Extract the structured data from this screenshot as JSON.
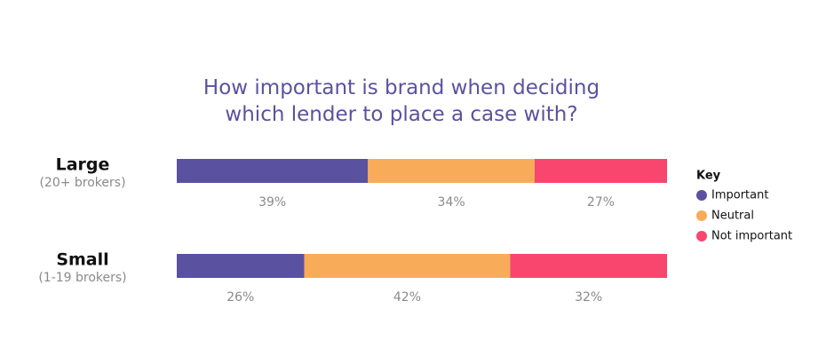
{
  "chart_data": {
    "type": "stacked-bar",
    "orientation": "horizontal",
    "title": "How important is brand when deciding which lender to place a case with?",
    "categories": [
      "Large",
      "Small"
    ],
    "category_subtitles": [
      "(20+ brokers)",
      "(1-19 brokers)"
    ],
    "legend_title": "Key",
    "legend": "right",
    "series": [
      {
        "name": "Important",
        "color": "#5a52a0",
        "values": [
          39,
          26
        ],
        "value_labels": [
          "39%",
          "26%"
        ]
      },
      {
        "name": "Neutral",
        "color": "#f8ac5a",
        "values": [
          34,
          42
        ],
        "value_labels": [
          "34%",
          "42%"
        ]
      },
      {
        "name": "Not important",
        "color": "#f8466f",
        "values": [
          27,
          32
        ],
        "value_labels": [
          "27%",
          "32%"
        ]
      }
    ]
  }
}
